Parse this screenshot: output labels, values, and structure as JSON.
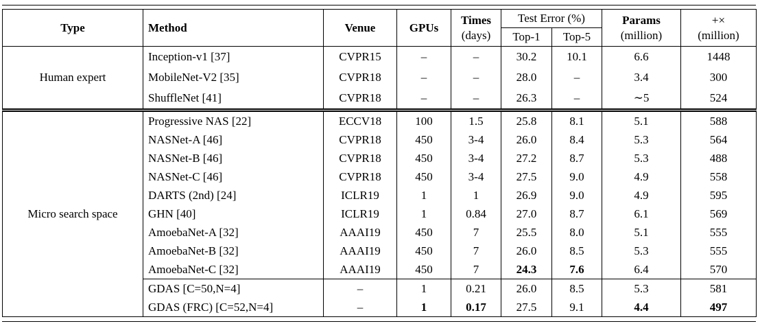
{
  "colors": {
    "background": "#ffffff",
    "text": "#000000",
    "rule": "#000000"
  },
  "table": {
    "header": {
      "type": "Type",
      "method": "Method",
      "venue": "Venue",
      "gpus": "GPUs",
      "times_line1": "Times",
      "times_line2": "(days)",
      "test_error": "Test Error (%)",
      "top1": "Top-1",
      "top5": "Top-5",
      "params_line1": "Params",
      "params_line2": "(million)",
      "flops_line1": "+×",
      "flops_line2": "(million)"
    },
    "groups": [
      {
        "type": "Human expert",
        "rows": [
          {
            "method": "Inception-v1 [37]",
            "venue": "CVPR15",
            "gpus": "–",
            "times": "–",
            "top1": "30.2",
            "top5": "10.1",
            "params": "6.6",
            "flops": "1448",
            "bold": []
          },
          {
            "method": "MobileNet-V2 [35]",
            "venue": "CVPR18",
            "gpus": "–",
            "times": "–",
            "top1": "28.0",
            "top5": "–",
            "params": "3.4",
            "flops": "300",
            "bold": []
          },
          {
            "method": "ShuffleNet [41]",
            "venue": "CVPR18",
            "gpus": "–",
            "times": "–",
            "top1": "26.3",
            "top5": "–",
            "params": "∼5",
            "flops": "524",
            "bold": []
          }
        ]
      },
      {
        "type": "Micro search space",
        "separator_before_row": 9,
        "rows": [
          {
            "method": "Progressive NAS [22]",
            "venue": "ECCV18",
            "gpus": "100",
            "times": "1.5",
            "top1": "25.8",
            "top5": "8.1",
            "params": "5.1",
            "flops": "588",
            "bold": []
          },
          {
            "method": "NASNet-A [46]",
            "venue": "CVPR18",
            "gpus": "450",
            "times": "3-4",
            "top1": "26.0",
            "top5": "8.4",
            "params": "5.3",
            "flops": "564",
            "bold": []
          },
          {
            "method": "NASNet-B [46]",
            "venue": "CVPR18",
            "gpus": "450",
            "times": "3-4",
            "top1": "27.2",
            "top5": "8.7",
            "params": "5.3",
            "flops": "488",
            "bold": []
          },
          {
            "method": "NASNet-C [46]",
            "venue": "CVPR18",
            "gpus": "450",
            "times": "3-4",
            "top1": "27.5",
            "top5": "9.0",
            "params": "4.9",
            "flops": "558",
            "bold": []
          },
          {
            "method": "DARTS (2nd) [24]",
            "venue": "ICLR19",
            "gpus": "1",
            "times": "1",
            "top1": "26.9",
            "top5": "9.0",
            "params": "4.9",
            "flops": "595",
            "bold": []
          },
          {
            "method": "GHN [40]",
            "venue": "ICLR19",
            "gpus": "1",
            "times": "0.84",
            "top1": "27.0",
            "top5": "8.7",
            "params": "6.1",
            "flops": "569",
            "bold": []
          },
          {
            "method": "AmoebaNet-A [32]",
            "venue": "AAAI19",
            "gpus": "450",
            "times": "7",
            "top1": "25.5",
            "top5": "8.0",
            "params": "5.1",
            "flops": "555",
            "bold": []
          },
          {
            "method": "AmoebaNet-B [32]",
            "venue": "AAAI19",
            "gpus": "450",
            "times": "7",
            "top1": "26.0",
            "top5": "8.5",
            "params": "5.3",
            "flops": "555",
            "bold": []
          },
          {
            "method": "AmoebaNet-C [32]",
            "venue": "AAAI19",
            "gpus": "450",
            "times": "7",
            "top1": "24.3",
            "top5": "7.6",
            "params": "6.4",
            "flops": "570",
            "bold": [
              "top1",
              "top5"
            ]
          },
          {
            "method": "GDAS [C=50,N=4]",
            "venue": "–",
            "gpus": "1",
            "times": "0.21",
            "top1": "26.0",
            "top5": "8.5",
            "params": "5.3",
            "flops": "581",
            "bold": []
          },
          {
            "method": "GDAS (FRC) [C=52,N=4]",
            "venue": "–",
            "gpus": "1",
            "times": "0.17",
            "top1": "27.5",
            "top5": "9.1",
            "params": "4.4",
            "flops": "497",
            "bold": [
              "gpus",
              "times",
              "params",
              "flops"
            ]
          }
        ]
      }
    ]
  }
}
